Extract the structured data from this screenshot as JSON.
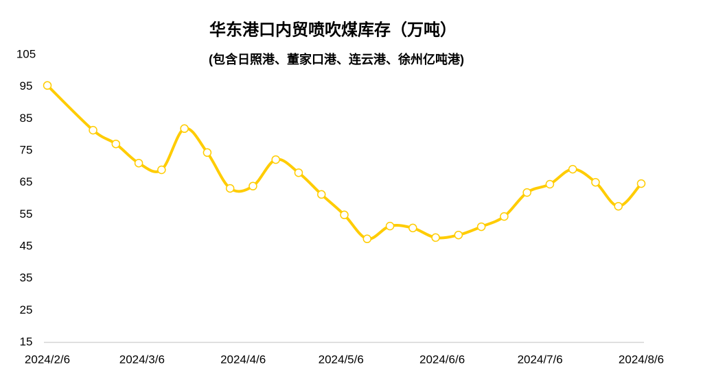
{
  "chart_data": {
    "type": "line",
    "title": "华东港口内贸喷吹煤库存（万吨）",
    "subtitle": "(包含日照港、董家口港、连云港、徐州亿吨港)",
    "x": [
      "2024/2/6",
      "2024/2/20",
      "2024/2/27",
      "2024/3/5",
      "2024/3/12",
      "2024/3/19",
      "2024/3/26",
      "2024/4/2",
      "2024/4/9",
      "2024/4/16",
      "2024/4/23",
      "2024/4/30",
      "2024/5/7",
      "2024/5/14",
      "2024/5/21",
      "2024/5/28",
      "2024/6/4",
      "2024/6/11",
      "2024/6/18",
      "2024/6/25",
      "2024/7/2",
      "2024/7/9",
      "2024/7/16",
      "2024/7/23",
      "2024/7/30",
      "2024/8/6"
    ],
    "series": [
      {
        "name": "华东港口内贸喷吹煤库存",
        "color": "#FFCC00",
        "values": [
          95.4,
          81.4,
          77.1,
          71.1,
          69.0,
          81.9,
          74.4,
          63.2,
          63.9,
          72.2,
          68.1,
          61.3,
          54.9,
          47.4,
          51.4,
          50.8,
          47.8,
          48.6,
          51.2,
          54.4,
          61.9,
          64.5,
          69.2,
          65.1,
          57.6,
          64.7
        ]
      }
    ],
    "xlim": [
      "2024/2/6",
      "2024/8/6"
    ],
    "xticks": [
      "2024/2/6",
      "2024/3/6",
      "2024/4/6",
      "2024/5/6",
      "2024/6/6",
      "2024/7/6",
      "2024/8/6"
    ],
    "ylim": [
      15,
      105
    ],
    "yticks": [
      15,
      25,
      35,
      45,
      55,
      65,
      75,
      85,
      95,
      105
    ],
    "grid": false
  }
}
